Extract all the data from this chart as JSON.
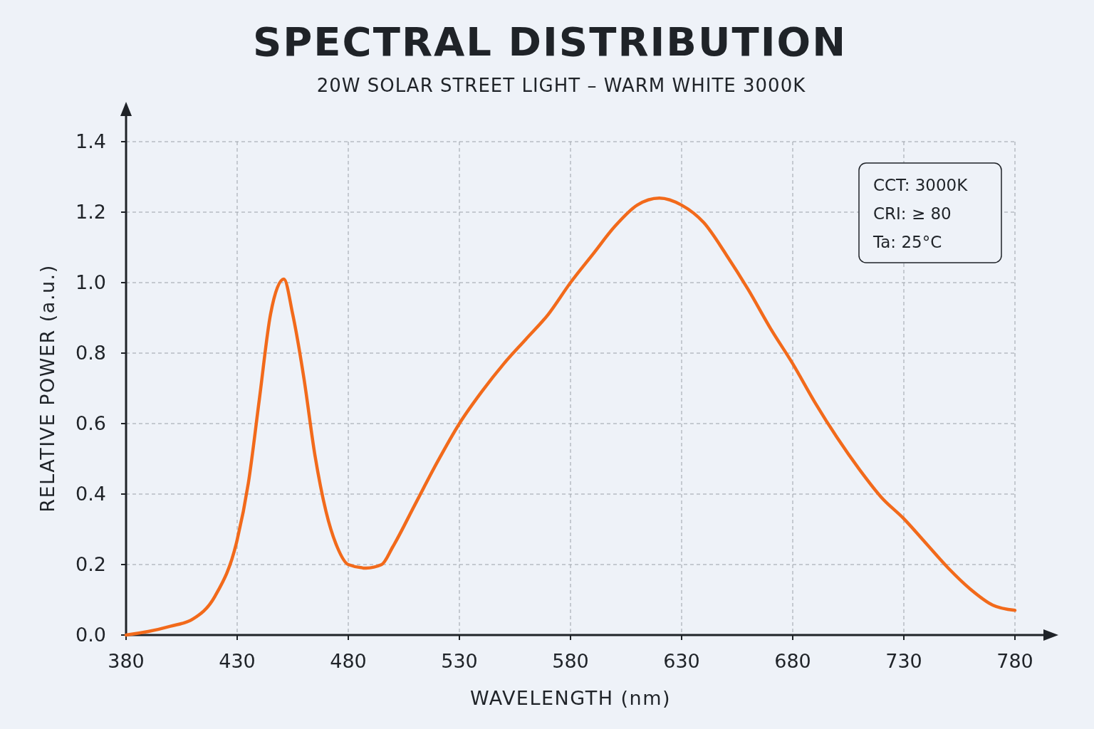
{
  "chart_data": {
    "type": "line",
    "title": "SPECTRAL DISTRIBUTION",
    "subtitle": "20W SOLAR STREET LIGHT – WARM WHITE 3000K",
    "xlabel": "WAVELENGTH (nm)",
    "ylabel": "RELATIVE POWER (a.u.)",
    "annotations": [
      "CCT: 3000K",
      "CRI: ≥ 80",
      "Ta: 25°C"
    ],
    "xlim": [
      380,
      780
    ],
    "xticks": [
      380,
      430,
      480,
      530,
      580,
      630,
      680,
      730,
      780
    ],
    "ylim": [
      0,
      1.4
    ],
    "yticks": [
      {
        "value": 0,
        "label": "0.0"
      },
      0.2,
      0.4,
      0.6,
      0.8,
      {
        "value": 1,
        "label": "1.0"
      },
      1.2,
      1.4
    ],
    "grid": true,
    "line_style": "solid",
    "marker": "none",
    "series": [
      {
        "color": "#f26a1b",
        "x": [
          380,
          390,
          400,
          410,
          420,
          430,
          435,
          440,
          445,
          451,
          455,
          460,
          465,
          470,
          475,
          480,
          488,
          495,
          500,
          510,
          520,
          530,
          540,
          550,
          560,
          570,
          580,
          590,
          600,
          610,
          620,
          630,
          640,
          650,
          660,
          670,
          680,
          690,
          700,
          710,
          720,
          730,
          740,
          750,
          760,
          770,
          780
        ],
        "values": [
          0,
          0.01,
          0.025,
          0.045,
          0.11,
          0.27,
          0.43,
          0.67,
          0.91,
          1.01,
          0.91,
          0.73,
          0.51,
          0.35,
          0.25,
          0.2,
          0.19,
          0.2,
          0.25,
          0.37,
          0.49,
          0.6,
          0.69,
          0.77,
          0.84,
          0.91,
          1.0,
          1.08,
          1.16,
          1.22,
          1.24,
          1.22,
          1.17,
          1.08,
          0.98,
          0.87,
          0.77,
          0.66,
          0.56,
          0.47,
          0.39,
          0.33,
          0.26,
          0.19,
          0.13,
          0.085,
          0.07
        ]
      }
    ]
  }
}
